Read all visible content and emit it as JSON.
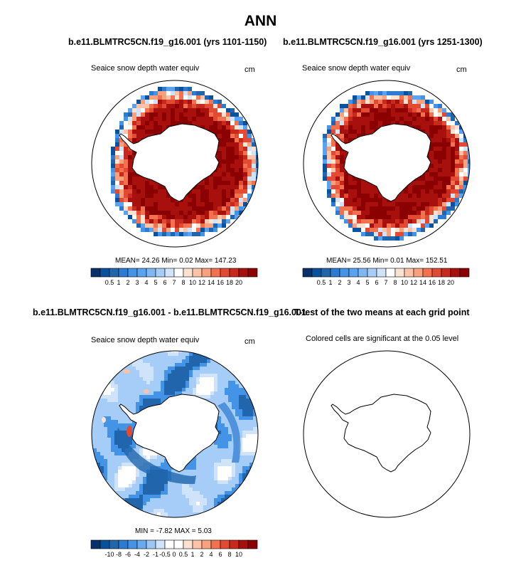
{
  "page_title": "ANN",
  "palettes": {
    "mean": [
      "#08306b",
      "#08519c",
      "#2166ac",
      "#2c7bd0",
      "#4393e6",
      "#5ba3ee",
      "#7fb7f2",
      "#a6cdf7",
      "#cfe3fb",
      "#ffffff",
      "#fde2d2",
      "#fcc3a8",
      "#f9a07c",
      "#f2714e",
      "#e34a33",
      "#c72a1d",
      "#a8100e",
      "#8b0000"
    ],
    "diff": [
      "#08306b",
      "#08519c",
      "#2166ac",
      "#2c7bd0",
      "#4393e6",
      "#6aaaef",
      "#9cc7f5",
      "#cfe3fb",
      "#ffffff",
      "#ffffff",
      "#fde2d2",
      "#fcc3a8",
      "#f9a07c",
      "#f2714e",
      "#e34a33",
      "#c72a1d",
      "#a8100e",
      "#8b0000"
    ]
  },
  "panels": [
    {
      "title": "b.e11.BLMTRC5CN.f19_g16.001 (yrs 1101-1150)",
      "variable": "Seaice snow depth water equiv",
      "units": "cm",
      "stats": {
        "mean_label": "MEAN=",
        "mean": "24.26",
        "min_label": "Min=",
        "min": "0.02",
        "max_label": "Max=",
        "max": "147.23"
      },
      "colorbar_labels": [
        "0.5",
        "1",
        "2",
        "3",
        "4",
        "5",
        "6",
        "7",
        "8",
        "10",
        "12",
        "14",
        "16",
        "18",
        "20"
      ]
    },
    {
      "title": "b.e11.BLMTRC5CN.f19_g16.001 (yrs 1251-1300)",
      "variable": "Seaice snow depth water equiv",
      "units": "cm",
      "stats": {
        "mean_label": "MEAN=",
        "mean": "25.56",
        "min_label": "Min=",
        "min": "0.01",
        "max_label": "Max=",
        "max": "152.51"
      },
      "colorbar_labels": [
        "0.5",
        "1",
        "2",
        "3",
        "4",
        "5",
        "6",
        "7",
        "8",
        "10",
        "12",
        "14",
        "16",
        "18",
        "20"
      ]
    },
    {
      "title": "b.e11.BLMTRC5CN.f19_g16.001 - b.e11.BLMTRC5CN.f19_g16.001",
      "variable": "Seaice snow depth water equiv",
      "units": "cm",
      "stats": {
        "min_label": "MIN =",
        "min": "-7.82",
        "max_label": "MAX =",
        "max": "5.03"
      },
      "colorbar_labels": [
        "-10",
        "-8",
        "-6",
        "-4",
        "-2",
        "-1",
        "-0.5",
        "0",
        "0.5",
        "1",
        "2",
        "4",
        "6",
        "8",
        "10"
      ]
    },
    {
      "title": "T-test of the two means at each grid point",
      "variable": "Colored cells are significant at the 0.05 level"
    }
  ],
  "chart_data": [
    {
      "type": "heatmap",
      "projection": "south-polar-stereographic",
      "title": "b.e11.BLMTRC5CN.f19_g16.001 (yrs 1101-1150)",
      "variable": "Seaice snow depth water equiv",
      "units": "cm",
      "mean": 24.26,
      "min": 0.02,
      "max": 147.23,
      "levels": [
        0.5,
        1,
        2,
        3,
        4,
        5,
        6,
        7,
        8,
        10,
        12,
        14,
        16,
        18,
        20
      ]
    },
    {
      "type": "heatmap",
      "projection": "south-polar-stereographic",
      "title": "b.e11.BLMTRC5CN.f19_g16.001 (yrs 1251-1300)",
      "variable": "Seaice snow depth water equiv",
      "units": "cm",
      "mean": 25.56,
      "min": 0.01,
      "max": 152.51,
      "levels": [
        0.5,
        1,
        2,
        3,
        4,
        5,
        6,
        7,
        8,
        10,
        12,
        14,
        16,
        18,
        20
      ]
    },
    {
      "type": "heatmap",
      "projection": "south-polar-stereographic",
      "title": "b.e11.BLMTRC5CN.f19_g16.001 - b.e11.BLMTRC5CN.f19_g16.001",
      "variable": "Seaice snow depth water equiv",
      "units": "cm",
      "min": -7.82,
      "max": 5.03,
      "levels": [
        -10,
        -8,
        -6,
        -4,
        -2,
        -1,
        -0.5,
        0,
        0.5,
        1,
        2,
        4,
        6,
        8,
        10
      ]
    },
    {
      "type": "heatmap",
      "projection": "south-polar-stereographic",
      "title": "T-test of the two means at each grid point",
      "note": "Colored cells are significant at the 0.05 level",
      "significant_cells": 0
    }
  ]
}
